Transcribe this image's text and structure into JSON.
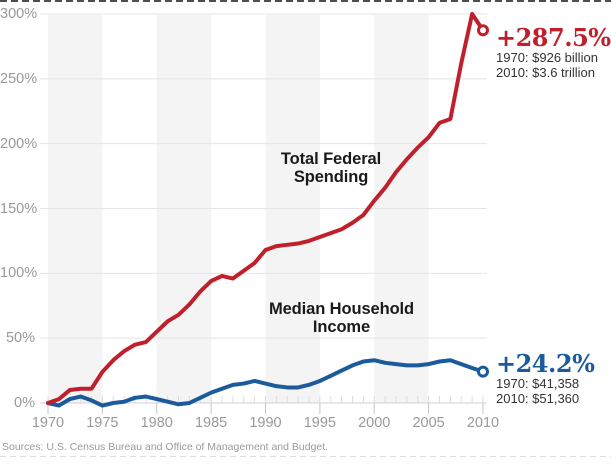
{
  "annotations": {
    "spending": {
      "value": "+287.5%",
      "detail1": "1970: $926 billion",
      "detail2": "2010: $3.6 trillion"
    },
    "income": {
      "value": "+24.2%",
      "detail1": "1970: $41,358",
      "detail2": "2010: $51,360"
    }
  },
  "series_labels": {
    "spending": "Total Federal\nSpending",
    "income": "Median Household\nIncome"
  },
  "source": "Sources: U.S. Census Bureau and Office of Management and Budget.",
  "colors": {
    "spending": "#c0202c",
    "income": "#1b5a9b",
    "stripe": "#f4f4f4",
    "gridline": "#e4e4e4",
    "axis": "#d2d2d2",
    "tick_minor": "#dcdcdc",
    "tick_major": "#c6c6c6",
    "axis_text": "#999999",
    "detail_text": "#333333",
    "label_text": "#1a1a1a"
  },
  "chart_data": {
    "type": "line",
    "x": [
      1970,
      1971,
      1972,
      1973,
      1974,
      1975,
      1976,
      1977,
      1978,
      1979,
      1980,
      1981,
      1982,
      1983,
      1984,
      1985,
      1986,
      1987,
      1988,
      1989,
      1990,
      1991,
      1992,
      1993,
      1994,
      1995,
      1996,
      1997,
      1998,
      1999,
      2000,
      2001,
      2002,
      2003,
      2004,
      2005,
      2006,
      2007,
      2008,
      2009,
      2010
    ],
    "series": [
      {
        "name": "Total Federal Spending",
        "end_value_label": "+287.5%",
        "values": [
          0,
          3,
          10,
          11,
          11,
          24,
          33,
          40,
          45,
          47,
          55,
          63,
          68,
          76,
          86,
          94,
          98,
          96,
          102,
          108,
          118,
          121,
          122,
          123,
          125,
          128,
          131,
          134,
          139,
          145,
          156,
          166,
          178,
          188,
          197,
          205,
          216,
          219,
          262,
          300,
          287.5
        ]
      },
      {
        "name": "Median Household Income",
        "end_value_label": "+24.2%",
        "values": [
          0,
          -2,
          3,
          5,
          2,
          -2,
          0,
          1,
          4,
          5,
          3,
          1,
          -1,
          0,
          4,
          8,
          11,
          14,
          15,
          17,
          15,
          13,
          12,
          12,
          14,
          17,
          21,
          25,
          29,
          32,
          33,
          31,
          30,
          29,
          29,
          30,
          32,
          33,
          30,
          27,
          24.2
        ]
      }
    ],
    "xlabel": "",
    "ylabel": "",
    "units": "percent change since 1970",
    "yticks": [
      0,
      50,
      100,
      150,
      200,
      250,
      300
    ],
    "ytick_labels": [
      "0%",
      "50%",
      "100%",
      "150%",
      "200%",
      "250%",
      "300%"
    ],
    "xticks": [
      1970,
      1975,
      1980,
      1985,
      1990,
      1995,
      2000,
      2005,
      2010
    ],
    "ylim": [
      0,
      300
    ],
    "xlim": [
      1970,
      2010
    ],
    "grid": "horizontal",
    "background": "alternating 5-year vertical bands",
    "legend": "inline labels with end-point annotations"
  }
}
